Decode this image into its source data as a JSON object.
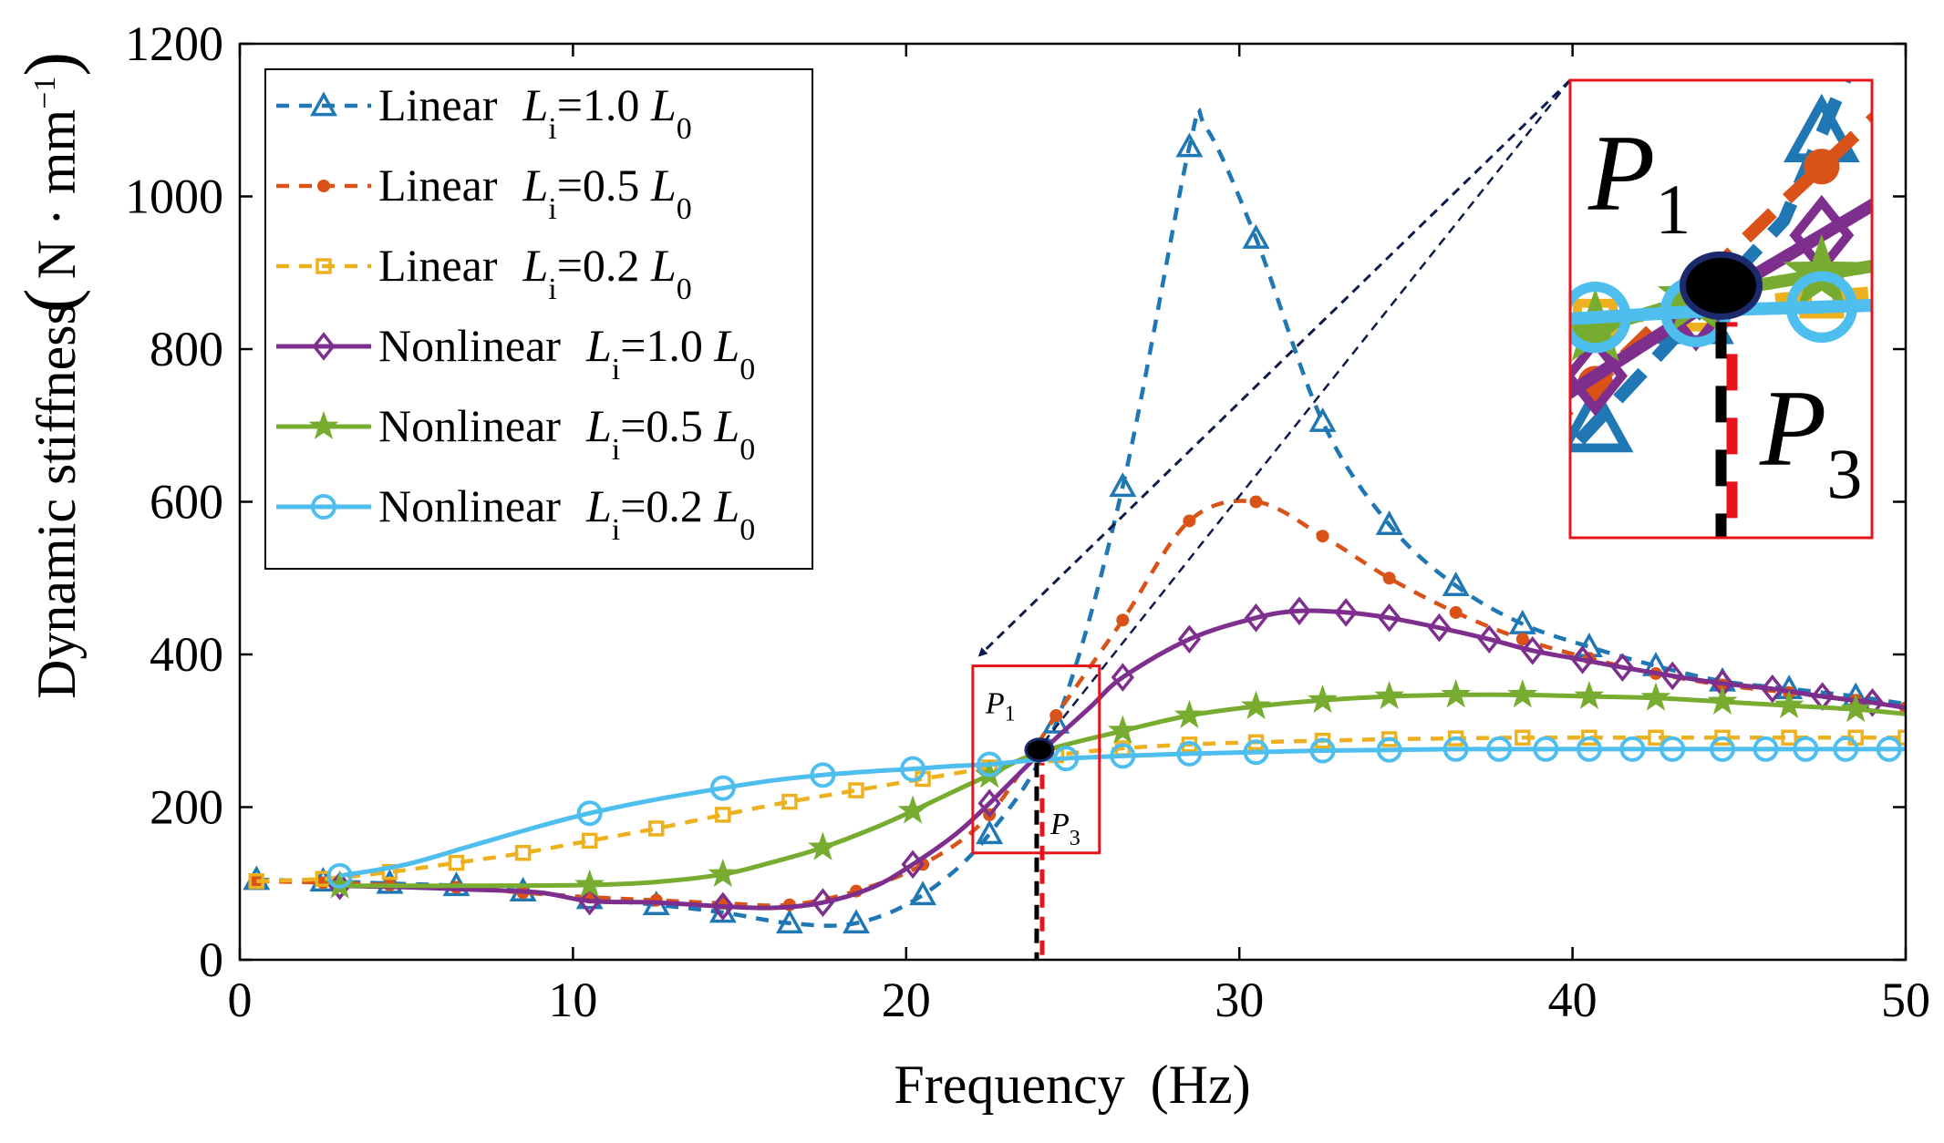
{
  "chart_data": {
    "type": "line",
    "xlabel": "Frequency",
    "xlabel_unit": "(Hz)",
    "ylabel": "Dynamic stiffness",
    "ylabel_unit": "N · mm",
    "ylabel_unit_exp": "−1",
    "xlim": [
      0,
      50
    ],
    "ylim": [
      0,
      1200
    ],
    "xticks": [
      "0",
      "10",
      "20",
      "30",
      "40",
      "50"
    ],
    "yticks": [
      "0",
      "200",
      "400",
      "600",
      "800",
      "1000",
      "1200"
    ],
    "legend_position": "top-left",
    "series": [
      {
        "name": "Linear",
        "var": "L",
        "var_sub": "i",
        "ratio": "=1.0 ",
        "ref": "L",
        "ref_sub": "0",
        "color": "#1f77b4",
        "style": "dashed",
        "marker": "triangle",
        "x": [
          0.5,
          2.5,
          4.5,
          6.5,
          8.5,
          10.5,
          12.5,
          14.5,
          16.5,
          18.5,
          20.5,
          22.5,
          24.5,
          26.5,
          28.5,
          29.0,
          30.5,
          32.5,
          34.5,
          36.5,
          38.5,
          40.5,
          42.5,
          44.5,
          46.5,
          48.5,
          50
        ],
        "y": [
          105,
          103,
          100,
          97,
          90,
          80,
          72,
          62,
          48,
          48,
          85,
          165,
          310,
          620,
          1065,
          1090,
          945,
          705,
          570,
          490,
          440,
          410,
          385,
          365,
          355,
          345,
          335
        ],
        "marker_x": [
          0.5,
          2.5,
          4.5,
          6.5,
          8.5,
          10.5,
          12.5,
          14.5,
          16.5,
          18.5,
          20.5,
          22.5,
          24.5,
          26.5,
          28.5,
          30.5,
          32.5,
          34.5,
          36.5,
          38.5,
          40.5,
          42.5,
          44.5,
          46.5,
          48.5
        ]
      },
      {
        "name": "Linear",
        "var": "L",
        "var_sub": "i",
        "ratio": "=0.5 ",
        "ref": "L",
        "ref_sub": "0",
        "color": "#d95319",
        "style": "dashed",
        "marker": "circle-filled",
        "x": [
          0.5,
          2.5,
          4.5,
          6.5,
          8.5,
          10.5,
          12.5,
          14.5,
          16.5,
          18.5,
          20.5,
          22.5,
          24.5,
          26.5,
          28.5,
          30.5,
          32.5,
          34.5,
          36.5,
          38.5,
          40.5,
          42.5,
          44.5,
          46.5,
          48.5,
          50
        ],
        "y": [
          103,
          101,
          98,
          95,
          88,
          82,
          78,
          74,
          72,
          90,
          125,
          190,
          320,
          445,
          575,
          600,
          555,
          500,
          455,
          420,
          395,
          375,
          360,
          350,
          340,
          330
        ]
      },
      {
        "name": "Linear",
        "var": "L",
        "var_sub": "i",
        "ratio": "=0.2 ",
        "ref": "L",
        "ref_sub": "0",
        "color": "#edb120",
        "style": "dashed",
        "marker": "square",
        "x": [
          0.5,
          2.5,
          4.5,
          6.5,
          8.5,
          10.5,
          12.5,
          14.5,
          16.5,
          18.5,
          20.5,
          22.5,
          24.5,
          26.5,
          28.5,
          30.5,
          32.5,
          34.5,
          36.5,
          38.5,
          40.5,
          42.5,
          44.5,
          46.5,
          48.5,
          50
        ],
        "y": [
          103,
          106,
          115,
          127,
          140,
          156,
          172,
          190,
          207,
          222,
          237,
          252,
          268,
          277,
          282,
          285,
          287,
          289,
          290,
          291,
          291,
          291,
          291,
          291,
          291,
          291
        ]
      },
      {
        "name": "Nonlinear",
        "var": "L",
        "var_sub": "i",
        "ratio": "=1.0 ",
        "ref": "L",
        "ref_sub": "0",
        "color": "#7e2f8e",
        "style": "solid",
        "marker": "diamond",
        "x": [
          3,
          5,
          7,
          9,
          10.5,
          12.5,
          14.5,
          16,
          17.5,
          19,
          20.2,
          21.5,
          22.5,
          24,
          25.5,
          26.5,
          28.5,
          30.5,
          31.8,
          33.2,
          34.5,
          36,
          37.5,
          38.8,
          40.3,
          41.5,
          43,
          44.5,
          46,
          47.5,
          49,
          50
        ],
        "y": [
          97,
          95,
          92,
          88,
          77,
          75,
          70,
          68,
          75,
          95,
          125,
          165,
          205,
          270,
          330,
          370,
          420,
          448,
          457,
          455,
          448,
          435,
          420,
          405,
          393,
          383,
          372,
          362,
          355,
          345,
          337,
          330
        ],
        "marker_x": [
          3,
          10.5,
          14.5,
          17.5,
          20.2,
          22.5,
          26.5,
          28.5,
          30.5,
          31.8,
          33.2,
          34.5,
          36,
          37.5,
          38.8,
          40.3,
          41.5,
          43,
          44.5,
          46,
          47.5,
          49
        ]
      },
      {
        "name": "Nonlinear",
        "var": "L",
        "var_sub": "i",
        "ratio": "=0.5 ",
        "ref": "L",
        "ref_sub": "0",
        "color": "#77ac30",
        "style": "solid",
        "marker": "star",
        "x": [
          3,
          5,
          7,
          10.5,
          12.5,
          14.5,
          16,
          17.5,
          19,
          20.2,
          21.5,
          22.5,
          24,
          26.5,
          28.5,
          30.5,
          32.5,
          34.5,
          36.5,
          38.5,
          40.5,
          42.5,
          44.5,
          46.5,
          48.5,
          50
        ],
        "y": [
          97,
          97,
          97,
          98,
          102,
          112,
          128,
          147,
          172,
          195,
          222,
          242,
          272,
          300,
          320,
          332,
          340,
          345,
          347,
          347,
          345,
          343,
          338,
          333,
          328,
          322
        ],
        "marker_x": [
          3,
          10.5,
          14.5,
          17.5,
          20.2,
          22.5,
          26.5,
          28.5,
          30.5,
          32.5,
          34.5,
          36.5,
          38.5,
          40.5,
          42.5,
          44.5,
          46.5,
          48.5
        ]
      },
      {
        "name": "Nonlinear",
        "var": "L",
        "var_sub": "i",
        "ratio": "=0.2 ",
        "ref": "L",
        "ref_sub": "0",
        "color": "#4dbeee",
        "style": "solid",
        "marker": "circle-open",
        "x": [
          3,
          5,
          7,
          9,
          10.5,
          12.5,
          14.5,
          16,
          17.5,
          19,
          20.2,
          21.5,
          22.5,
          24,
          26.5,
          28.5,
          30.5,
          32.5,
          34.5,
          36.5,
          38.5,
          40.5,
          42.5,
          44.5,
          46.5,
          48.5,
          50
        ],
        "y": [
          110,
          125,
          150,
          175,
          192,
          210,
          225,
          235,
          242,
          247,
          250,
          254,
          256,
          262,
          267,
          270,
          272,
          274,
          275,
          276,
          276,
          276,
          276,
          276,
          276,
          276,
          276
        ],
        "marker_x": [
          3,
          10.5,
          14.5,
          17.5,
          20.2,
          22.5,
          24.8,
          26.5,
          28.5,
          30.5,
          32.5,
          34.5,
          36.5,
          37.8,
          39.2,
          40.5,
          41.8,
          43,
          44.5,
          45.8,
          47,
          48.2,
          49.5
        ]
      }
    ],
    "annotations": {
      "p1": {
        "label": "P",
        "sub": "1"
      },
      "p3": {
        "label": "P",
        "sub": "3"
      },
      "intersection": {
        "x": 24,
        "y": 275
      },
      "zoom_box": {
        "x": [
          22,
          25.8
        ],
        "y": [
          140,
          385
        ]
      }
    }
  }
}
